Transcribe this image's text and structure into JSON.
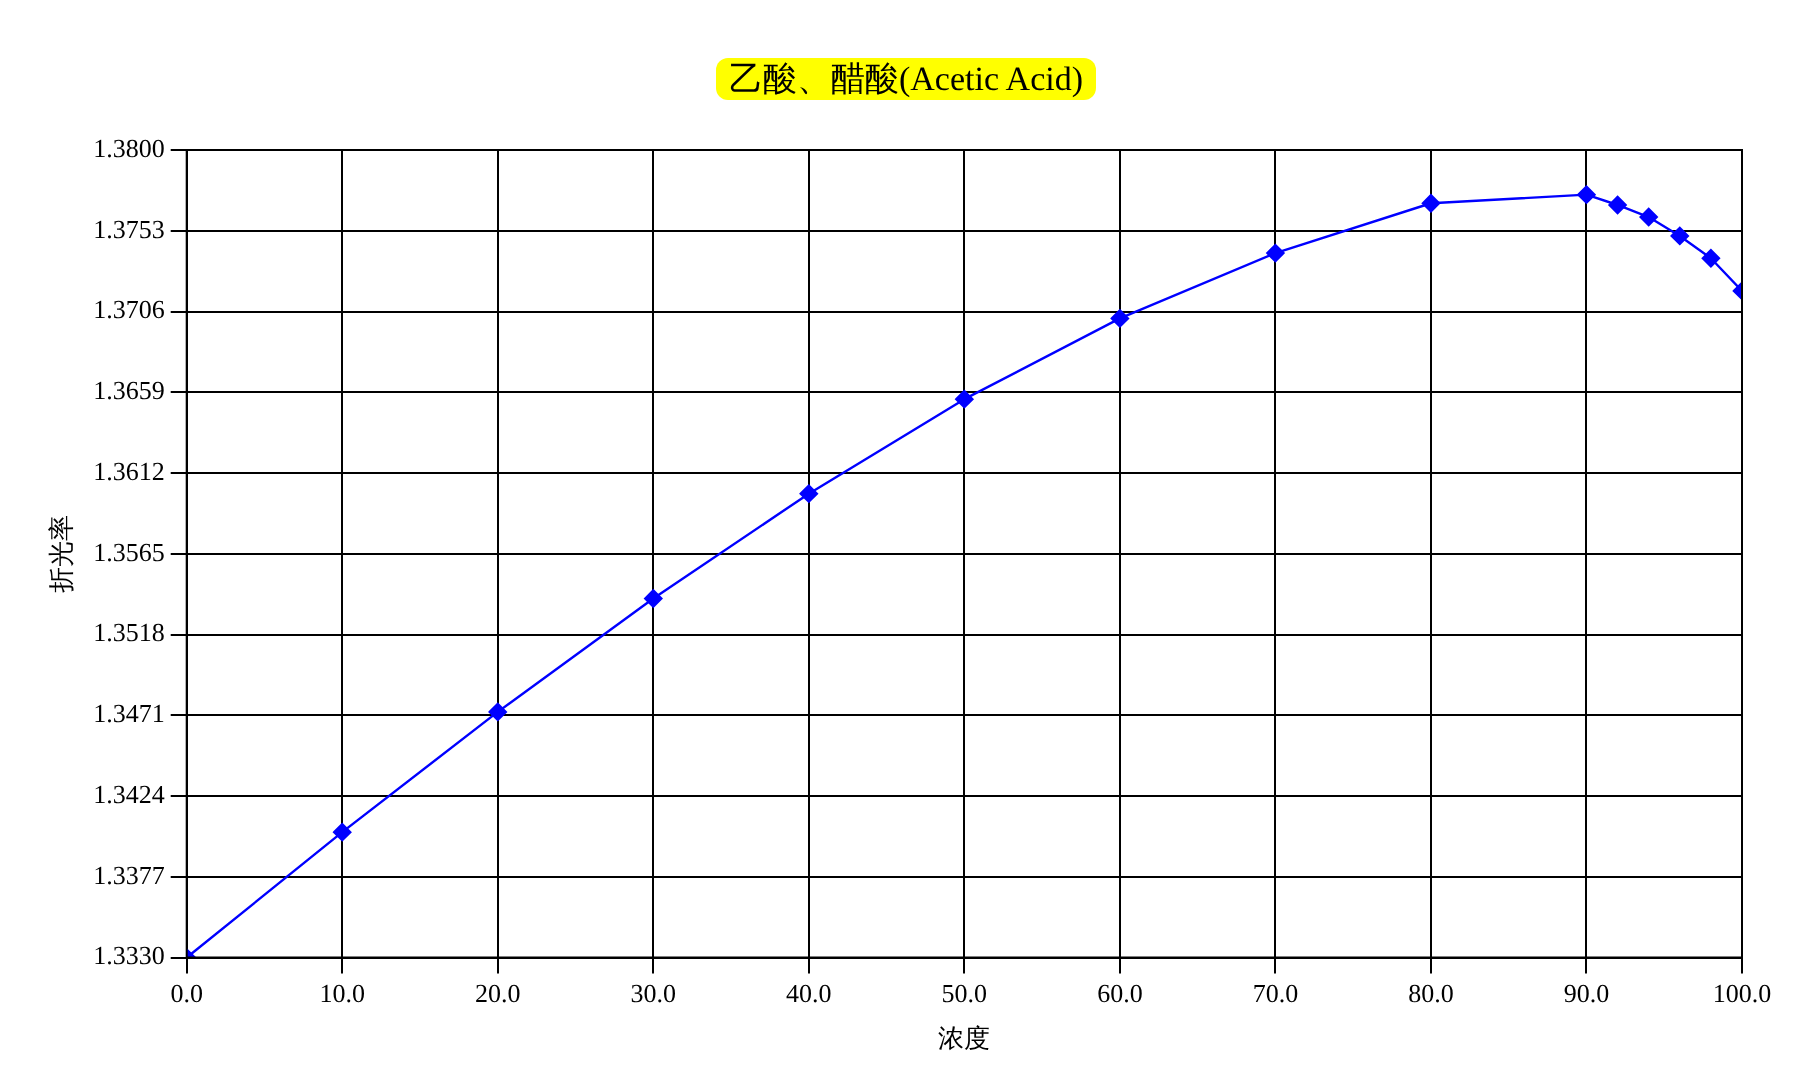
{
  "chart_data": {
    "type": "line",
    "title": "乙酸、醋酸(Acetic Acid)",
    "xlabel": "浓度",
    "ylabel": "折光率",
    "x": [
      0,
      10,
      20,
      30,
      40,
      50,
      60,
      70,
      80,
      90,
      92,
      94,
      96,
      98,
      100
    ],
    "series": [
      {
        "color": "#0000ff",
        "values": [
          1.333,
          1.3403,
          1.3473,
          1.3539,
          1.36,
          1.3655,
          1.3702,
          1.374,
          1.3769,
          1.3774,
          1.3768,
          1.3761,
          1.375,
          1.3737,
          1.3718
        ]
      }
    ],
    "xlim": [
      0,
      100
    ],
    "xticks": [
      {
        "value": 0,
        "label": "0.0"
      },
      {
        "value": 10,
        "label": "10.0"
      },
      {
        "value": 20,
        "label": "20.0"
      },
      {
        "value": 30,
        "label": "30.0"
      },
      {
        "value": 40,
        "label": "40.0"
      },
      {
        "value": 50,
        "label": "50.0"
      },
      {
        "value": 60,
        "label": "60.0"
      },
      {
        "value": 70,
        "label": "70.0"
      },
      {
        "value": 80,
        "label": "80.0"
      },
      {
        "value": 90,
        "label": "90.0"
      },
      {
        "value": 100,
        "label": "100.0"
      }
    ],
    "ylim": [
      1.333,
      1.38
    ],
    "yticks": [
      {
        "value": 1.333,
        "label": "1.3330"
      },
      {
        "value": 1.3377,
        "label": "1.3377"
      },
      {
        "value": 1.3424,
        "label": "1.3424"
      },
      {
        "value": 1.3471,
        "label": "1.3471"
      },
      {
        "value": 1.3518,
        "label": "1.3518"
      },
      {
        "value": 1.3565,
        "label": "1.3565"
      },
      {
        "value": 1.3612,
        "label": "1.3612"
      },
      {
        "value": 1.3659,
        "label": "1.3659"
      },
      {
        "value": 1.3706,
        "label": "1.3706"
      },
      {
        "value": 1.3753,
        "label": "1.3753"
      },
      {
        "value": 1.38,
        "label": "1.3800"
      }
    ],
    "grid": true,
    "legend": false,
    "marker": "diamond",
    "line_style": "solid"
  }
}
